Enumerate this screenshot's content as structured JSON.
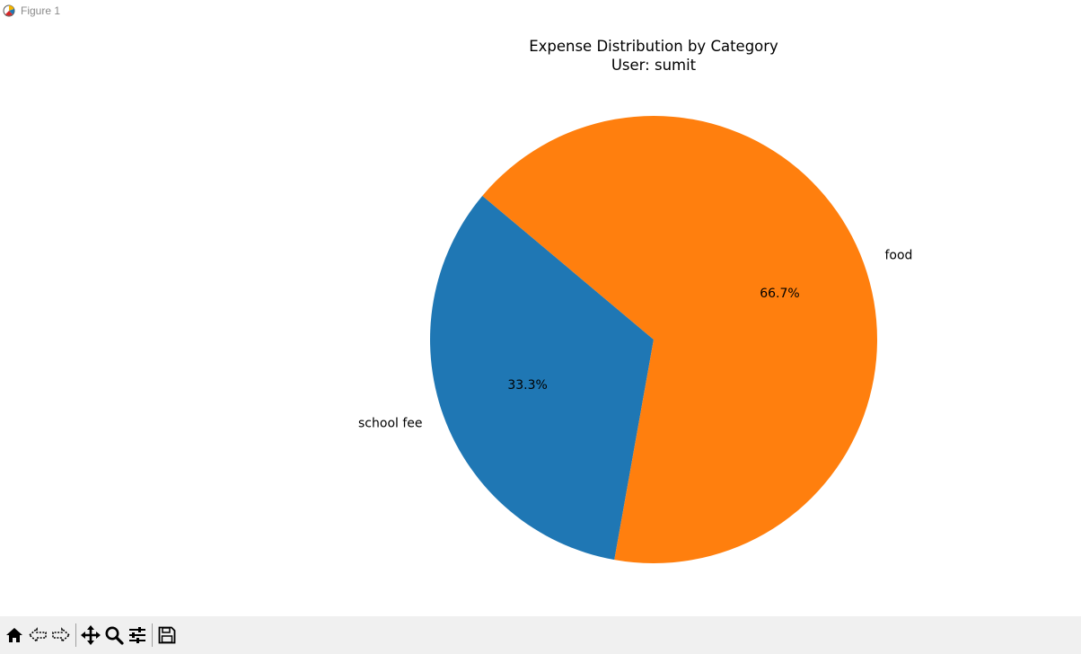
{
  "window": {
    "title": "Figure 1",
    "icon": "matplotlib-figure-icon"
  },
  "chart_data": {
    "type": "pie",
    "title": "Expense Distribution by Category",
    "subtitle": "User: sumit",
    "slices": [
      {
        "label": "school fee",
        "value": 33.3,
        "pct_label": "33.3%",
        "color": "#1f77b4"
      },
      {
        "label": "food",
        "value": 66.7,
        "pct_label": "66.7%",
        "color": "#ff7f0e"
      }
    ],
    "start_angle_deg": 140,
    "counterclock": true
  },
  "toolbar": {
    "buttons": [
      {
        "name": "home-icon",
        "tooltip": "Reset original view"
      },
      {
        "name": "back-arrow-icon",
        "tooltip": "Back to previous view"
      },
      {
        "name": "forward-arrow-icon",
        "tooltip": "Forward to next view"
      },
      {
        "name": "pan-move-icon",
        "tooltip": "Pan axes"
      },
      {
        "name": "zoom-magnifier-icon",
        "tooltip": "Zoom to rectangle"
      },
      {
        "name": "configure-subplots-icon",
        "tooltip": "Configure subplots"
      },
      {
        "name": "save-floppy-icon",
        "tooltip": "Save the figure"
      }
    ]
  }
}
